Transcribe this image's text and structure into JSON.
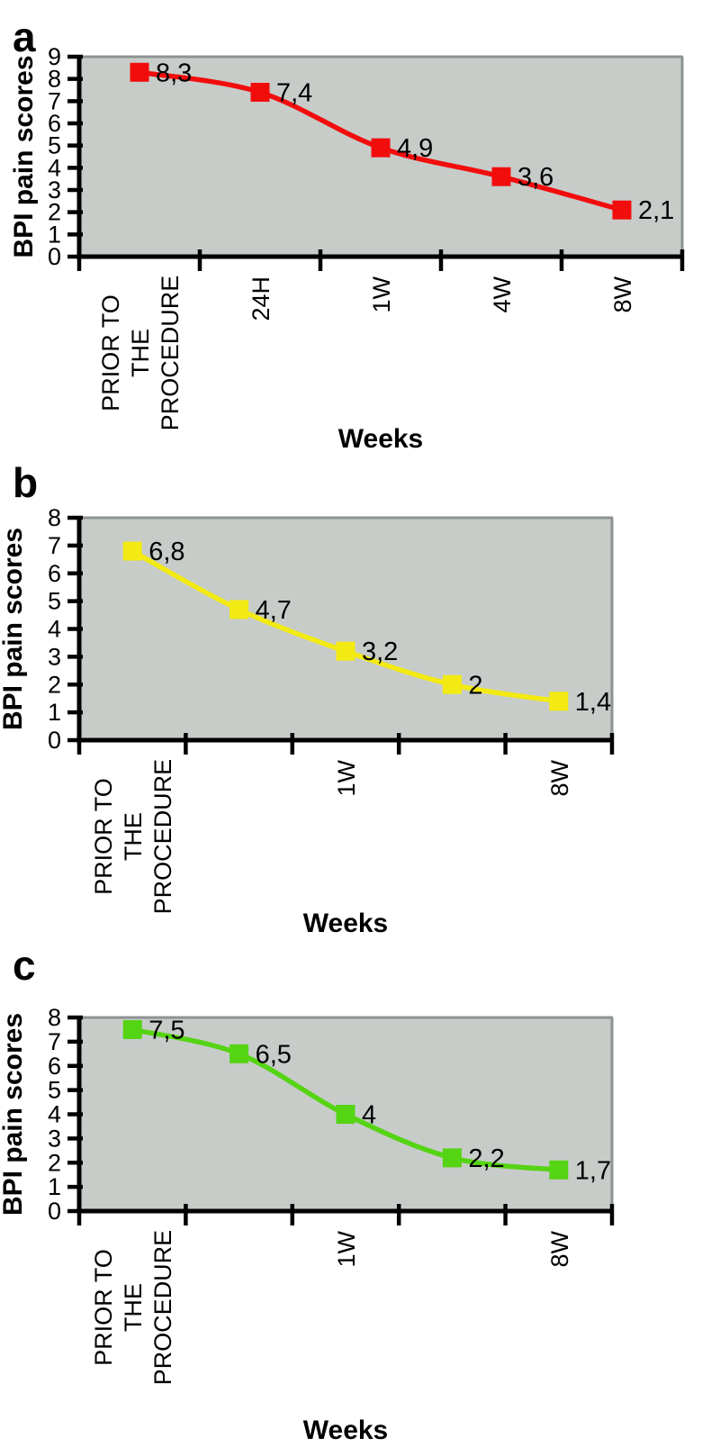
{
  "figure": {
    "background": "#ffffff",
    "text_color": "#000000",
    "plot_bg_color": "#c7ccc9",
    "plot_border_color": "#8e9391",
    "axis_color": "#000000"
  },
  "chart_data": [
    {
      "type": "line",
      "panel_label": "a",
      "categories": [
        "PRIOR TO\nTHE\nPROCEDURE",
        "24H",
        "1W",
        "4W",
        "8W"
      ],
      "values": [
        8.3,
        7.4,
        4.9,
        3.6,
        2.1
      ],
      "point_labels": [
        "8,3",
        "7,4",
        "4,9",
        "3,6",
        "2,1"
      ],
      "xlabel": "Weeks",
      "ylabel": "BPI pain scores",
      "ylim": [
        0,
        9
      ],
      "ytick_step": 1,
      "grid": false,
      "legend": "none",
      "marker": "square",
      "line_color": "#f20d0d",
      "line_smooth": true
    },
    {
      "type": "line",
      "panel_label": "b",
      "categories": [
        "PRIOR TO\nTHE\nPROCEDURE",
        "",
        "1W",
        "",
        "8W"
      ],
      "values": [
        6.8,
        4.7,
        3.2,
        2,
        1.4
      ],
      "point_labels": [
        "6,8",
        "4,7",
        "3,2",
        "2",
        "1,4"
      ],
      "xlabel": "Weeks",
      "ylabel": "BPI pain scores",
      "ylim": [
        0,
        8
      ],
      "ytick_step": 1,
      "grid": false,
      "legend": "none",
      "marker": "square",
      "line_color": "#f2ea12",
      "line_smooth": true
    },
    {
      "type": "line",
      "panel_label": "c",
      "categories": [
        "PRIOR TO\nTHE\nPROCEDURE",
        "",
        "1W",
        "",
        "8W"
      ],
      "values": [
        7.5,
        6.5,
        4,
        2.2,
        1.7
      ],
      "point_labels": [
        "7,5",
        "6,5",
        "4",
        "2,2",
        "1,7"
      ],
      "xlabel": "Weeks",
      "ylabel": "BPI pain scores",
      "ylim": [
        0,
        8
      ],
      "ytick_step": 1,
      "grid": false,
      "legend": "none",
      "marker": "square",
      "line_color": "#55d413",
      "line_smooth": true
    }
  ]
}
